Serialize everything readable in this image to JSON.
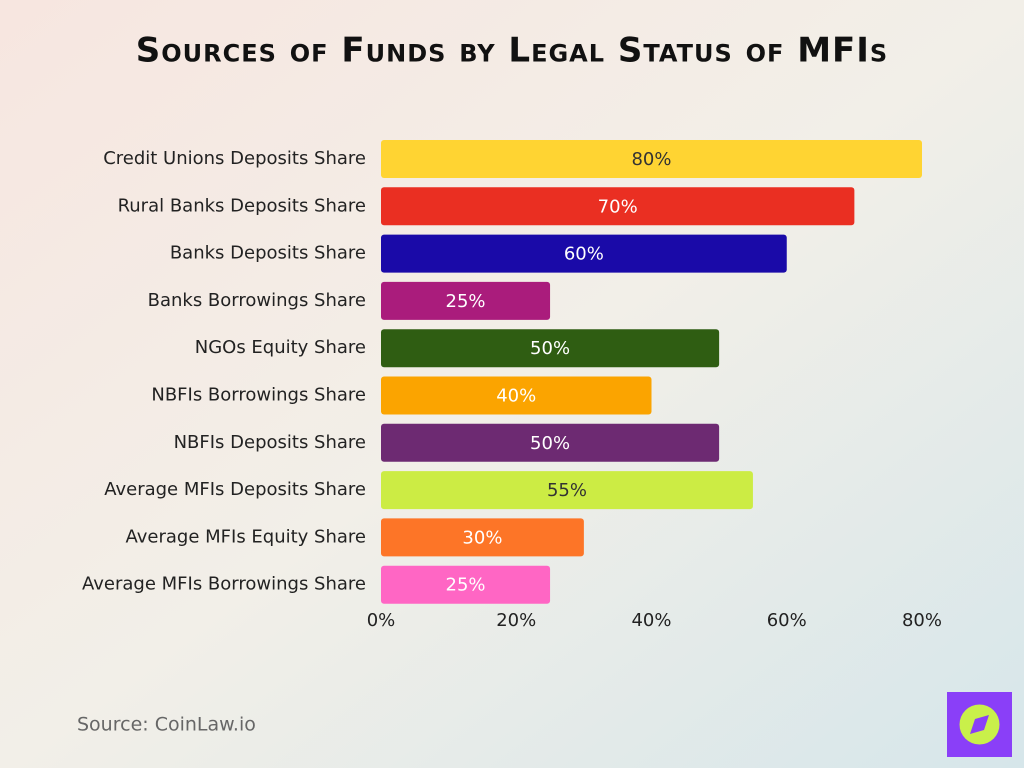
{
  "chart_data": {
    "type": "bar",
    "orientation": "horizontal",
    "title": "Sources of Funds by Legal Status of MFIs",
    "categories": [
      "Credit Unions Deposits Share",
      "Rural Banks Deposits Share",
      "Banks Deposits Share",
      "Banks Borrowings Share",
      "NGOs Equity Share",
      "NBFIs Borrowings Share",
      "NBFIs Deposits Share",
      "Average MFIs Deposits Share",
      "Average MFIs Equity Share",
      "Average MFIs Borrowings Share"
    ],
    "values": [
      80,
      70,
      60,
      25,
      50,
      40,
      50,
      55,
      30,
      25
    ],
    "value_labels": [
      "80%",
      "70%",
      "60%",
      "25%",
      "50%",
      "40%",
      "50%",
      "55%",
      "30%",
      "25%"
    ],
    "colors": [
      "#ffd432",
      "#ea2f22",
      "#1a0aa8",
      "#aa1c7c",
      "#2f5d12",
      "#fba400",
      "#6d2a72",
      "#ccec44",
      "#fd7527",
      "#ff66c4"
    ],
    "xlim": [
      0,
      80
    ],
    "xticks": [
      {
        "value": 0,
        "label": "0%"
      },
      {
        "value": 20,
        "label": "20%"
      },
      {
        "value": 40,
        "label": "40%"
      },
      {
        "value": 60,
        "label": "60%"
      },
      {
        "value": 80,
        "label": "80%"
      }
    ],
    "grid": false,
    "source": "Source: CoinLaw.io"
  }
}
